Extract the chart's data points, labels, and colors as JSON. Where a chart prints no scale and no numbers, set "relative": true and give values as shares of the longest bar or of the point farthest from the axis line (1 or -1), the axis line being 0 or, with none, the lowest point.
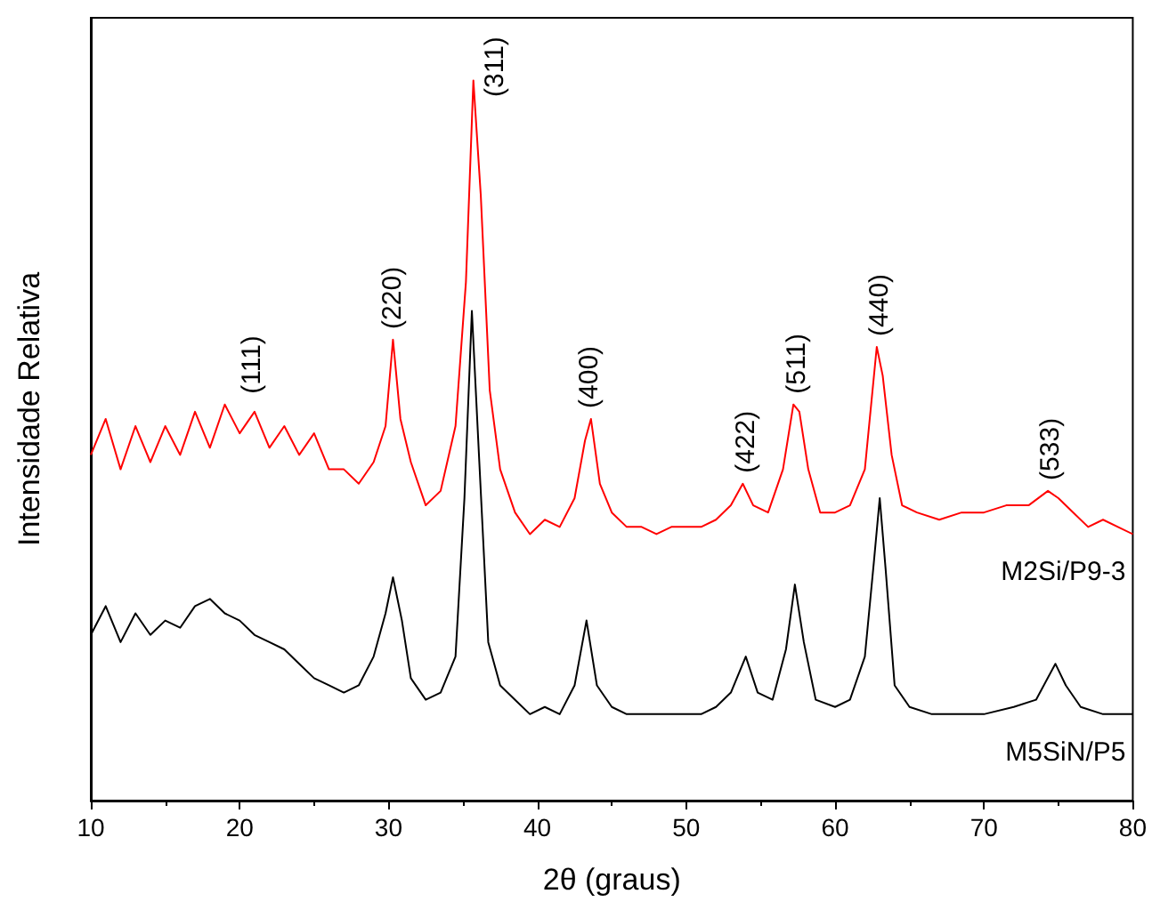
{
  "chart_data": {
    "type": "line",
    "relative": true,
    "xlabel": "2θ (graus)",
    "ylabel": "Intensidade Relativa",
    "xlim": [
      10,
      80
    ],
    "xticks": [
      10,
      20,
      30,
      40,
      50,
      60,
      70,
      80
    ],
    "grid": false,
    "legend": false,
    "marker": "none",
    "line_style": "solid",
    "tick_labels": "x",
    "series": [
      {
        "name": "M2Si/P9-3",
        "color": "#ff0000",
        "x": [
          10,
          11,
          12,
          13,
          14,
          15,
          16,
          17,
          18,
          19,
          20,
          21,
          22,
          23,
          24,
          25,
          26,
          27,
          28,
          29,
          29.8,
          30.3,
          30.8,
          31.5,
          32.5,
          33.5,
          34.5,
          35.2,
          35.7,
          36.2,
          36.8,
          37.5,
          38.5,
          39.5,
          40.5,
          41.5,
          42.5,
          43.2,
          43.6,
          44.2,
          45,
          46,
          47,
          48,
          49,
          50,
          51,
          52,
          53,
          53.8,
          54.5,
          55.5,
          56.5,
          57.2,
          57.6,
          58.2,
          59,
          60,
          61,
          62,
          62.8,
          63.2,
          63.8,
          64.5,
          65.5,
          67,
          68.5,
          70,
          71.5,
          73,
          74.3,
          75,
          76,
          77,
          78,
          79,
          80
        ],
        "values": [
          0.48,
          0.53,
          0.46,
          0.52,
          0.47,
          0.52,
          0.48,
          0.54,
          0.49,
          0.55,
          0.51,
          0.54,
          0.49,
          0.52,
          0.48,
          0.51,
          0.46,
          0.46,
          0.44,
          0.47,
          0.52,
          0.64,
          0.53,
          0.47,
          0.41,
          0.43,
          0.52,
          0.72,
          1.0,
          0.84,
          0.57,
          0.46,
          0.4,
          0.37,
          0.39,
          0.38,
          0.42,
          0.5,
          0.53,
          0.44,
          0.4,
          0.38,
          0.38,
          0.37,
          0.38,
          0.38,
          0.38,
          0.39,
          0.41,
          0.44,
          0.41,
          0.4,
          0.46,
          0.55,
          0.54,
          0.46,
          0.4,
          0.4,
          0.41,
          0.46,
          0.63,
          0.59,
          0.48,
          0.41,
          0.4,
          0.39,
          0.4,
          0.4,
          0.41,
          0.41,
          0.43,
          0.42,
          0.4,
          0.38,
          0.39,
          0.38,
          0.37
        ]
      },
      {
        "name": "M5SiN/P5",
        "color": "#000000",
        "x": [
          10,
          11,
          12,
          13,
          14,
          15,
          16,
          17,
          18,
          19,
          20,
          21,
          22,
          23,
          24,
          25,
          26,
          27,
          28,
          29,
          29.8,
          30.3,
          30.9,
          31.5,
          32.5,
          33.5,
          34.5,
          35.1,
          35.6,
          36.1,
          36.7,
          37.5,
          38.5,
          39.5,
          40.5,
          41.5,
          42.5,
          43.3,
          44,
          45,
          46,
          47,
          48,
          49,
          50,
          51,
          52,
          53,
          54,
          54.8,
          55.8,
          56.7,
          57.3,
          57.9,
          58.7,
          60,
          61,
          62,
          62.6,
          63,
          63.4,
          64,
          65,
          66.5,
          68,
          70,
          72,
          73.5,
          74.8,
          75.5,
          76.5,
          78,
          79,
          80
        ],
        "values": [
          0.23,
          0.27,
          0.22,
          0.26,
          0.23,
          0.25,
          0.24,
          0.27,
          0.28,
          0.26,
          0.25,
          0.23,
          0.22,
          0.21,
          0.19,
          0.17,
          0.16,
          0.15,
          0.16,
          0.2,
          0.26,
          0.31,
          0.25,
          0.17,
          0.14,
          0.15,
          0.2,
          0.42,
          0.68,
          0.47,
          0.22,
          0.16,
          0.14,
          0.12,
          0.13,
          0.12,
          0.16,
          0.25,
          0.16,
          0.13,
          0.12,
          0.12,
          0.12,
          0.12,
          0.12,
          0.12,
          0.13,
          0.15,
          0.2,
          0.15,
          0.14,
          0.21,
          0.3,
          0.22,
          0.14,
          0.13,
          0.14,
          0.2,
          0.33,
          0.42,
          0.32,
          0.16,
          0.13,
          0.12,
          0.12,
          0.12,
          0.13,
          0.14,
          0.19,
          0.16,
          0.13,
          0.12,
          0.12,
          0.12
        ]
      }
    ],
    "annotations": [
      {
        "text": "(111)",
        "x": 20.8,
        "y": 0.55
      },
      {
        "text": "(220)",
        "x": 30.3,
        "y": 0.64
      },
      {
        "text": "(311)",
        "x": 35.7,
        "y": 1.0
      },
      {
        "text": "(400)",
        "x": 43.5,
        "y": 0.53
      },
      {
        "text": "(422)",
        "x": 54,
        "y": 0.44
      },
      {
        "text": "(511)",
        "x": 57.4,
        "y": 0.55
      },
      {
        "text": "(440)",
        "x": 63,
        "y": 0.63
      },
      {
        "text": "(533)",
        "x": 74.5,
        "y": 0.43
      }
    ]
  }
}
